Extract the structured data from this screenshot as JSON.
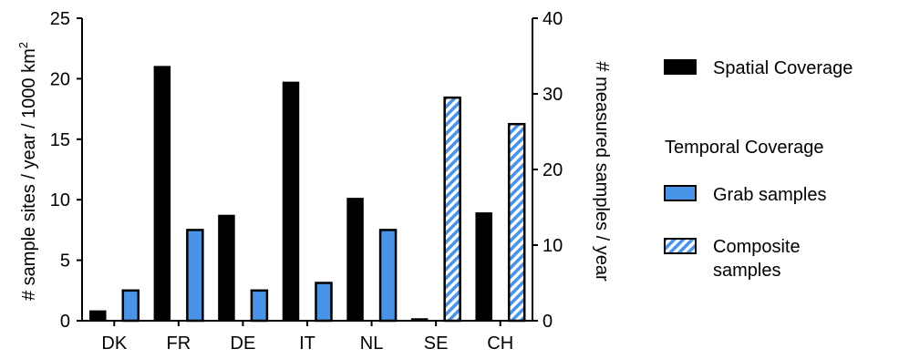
{
  "chart_data": {
    "type": "bar",
    "categories": [
      "DK",
      "FR",
      "DE",
      "IT",
      "NL",
      "SE",
      "CH"
    ],
    "ylabel_left": "# sample sites / year / 1000 km",
    "ylabel_left_superscript": "2",
    "ylabel_right": "# measured samples / year",
    "ylim_left": [
      0,
      25
    ],
    "ylim_right": [
      0,
      40
    ],
    "yticks_left": [
      0,
      5,
      10,
      15,
      20,
      25
    ],
    "yticks_right": [
      0,
      10,
      20,
      30,
      40
    ],
    "grid": false,
    "legend_position": "right",
    "series": [
      {
        "name": "Spatial Coverage",
        "axis": "left",
        "color": "#000000",
        "values": [
          0.8,
          21.0,
          8.7,
          19.7,
          10.1,
          0.15,
          8.9
        ]
      },
      {
        "name": "Grab samples",
        "axis": "right",
        "color": "#4a94e8",
        "values": [
          4,
          12,
          4,
          5,
          12,
          null,
          null
        ]
      },
      {
        "name": "Composite samples",
        "axis": "right",
        "color": "#4a94e8",
        "pattern": "hatched",
        "values": [
          null,
          null,
          null,
          null,
          null,
          29.5,
          26
        ]
      }
    ],
    "legend": {
      "spatial_label": "Spatial Coverage",
      "temporal_title": "Temporal Coverage",
      "grab_label": "Grab samples",
      "composite_label_line1": "Composite",
      "composite_label_line2": "samples"
    }
  }
}
